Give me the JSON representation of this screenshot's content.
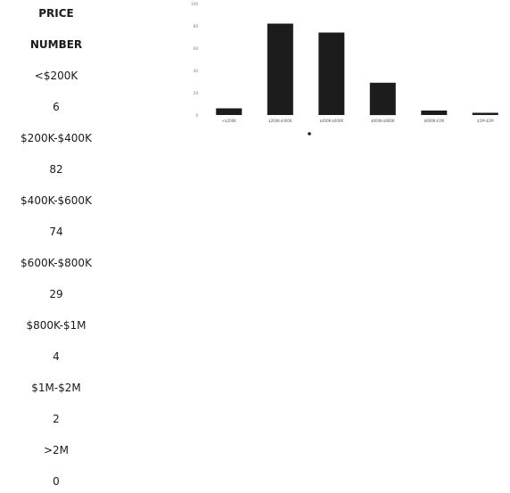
{
  "table": {
    "header": [
      "PRICE",
      "NUMBER"
    ],
    "rows": [
      {
        "price": "<$200K",
        "number": "6"
      },
      {
        "price": "$200K-$400K",
        "number": "82"
      },
      {
        "price": "$400K-$600K",
        "number": "74"
      },
      {
        "price": "$600K-$800K",
        "number": "29"
      },
      {
        "price": "$800K-$1M",
        "number": "4"
      },
      {
        "price": "$1M-$2M",
        "number": "2"
      },
      {
        "price": ">2M",
        "number": "0"
      }
    ]
  },
  "chart_data": {
    "type": "bar",
    "title": "",
    "xlabel": "",
    "ylabel": "",
    "categories": [
      "<$200K",
      "$200K-$400K",
      "$400K-$600K",
      "$600K-$800K",
      "$800K-$1M",
      "$1M-$2M"
    ],
    "values": [
      6,
      82,
      74,
      29,
      4,
      2
    ],
    "ylim": [
      0,
      100
    ],
    "yticks": [
      0,
      20,
      40,
      60,
      80,
      100
    ],
    "grid": false,
    "legend_position": "bottom",
    "bar_color": "#1c1c1c"
  }
}
